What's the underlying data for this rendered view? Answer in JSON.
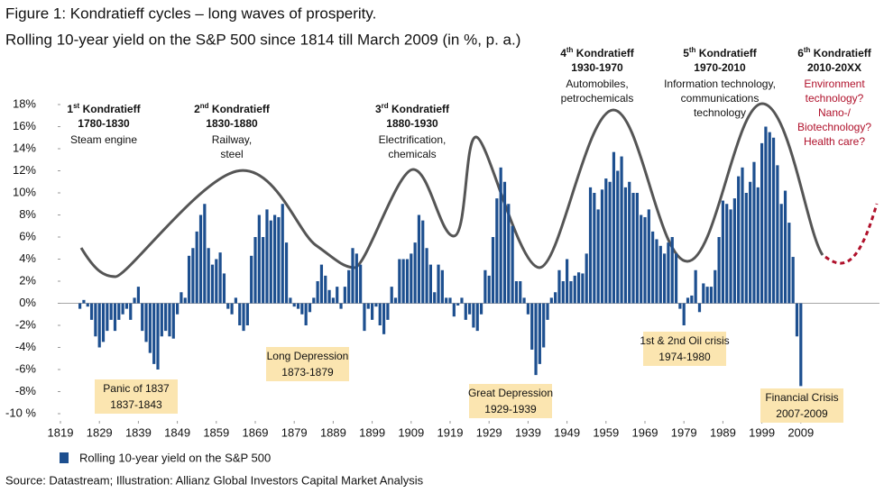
{
  "chart_data": {
    "type": "bar",
    "title": "Figure 1: Kondratieff cycles – long waves of prosperity.",
    "subtitle": "Rolling 10-year yield on the S&P 500 since 1814 till March 2009 (in %, p. a.)",
    "source": "Source: Datastream; Illustration: Allianz Global Investors Capital Market Analysis",
    "xlim": [
      1819,
      2019
    ],
    "xticks": [
      1819,
      1829,
      1839,
      1849,
      1859,
      1869,
      1879,
      1889,
      1899,
      1909,
      1919,
      1929,
      1939,
      1949,
      1959,
      1969,
      1979,
      1989,
      1999,
      2009
    ],
    "ylim": [
      -10,
      18
    ],
    "yticks": [
      {
        "value": -10,
        "label": "-10 %"
      },
      {
        "value": -8,
        "label": "-8%"
      },
      {
        "value": -6,
        "label": "-6%"
      },
      {
        "value": -4,
        "label": "-4%"
      },
      {
        "value": -2,
        "label": "-2%"
      },
      {
        "value": 0,
        "label": "0%"
      },
      {
        "value": 2,
        "label": "2%"
      },
      {
        "value": 4,
        "label": "4%"
      },
      {
        "value": 6,
        "label": "6%"
      },
      {
        "value": 8,
        "label": "8%"
      },
      {
        "value": 10,
        "label": "10%"
      },
      {
        "value": 12,
        "label": "12%"
      },
      {
        "value": 14,
        "label": "14%"
      },
      {
        "value": 16,
        "label": "16%"
      },
      {
        "value": 18,
        "label": "18%"
      }
    ],
    "x": [
      1824,
      1825,
      1826,
      1827,
      1828,
      1829,
      1830,
      1831,
      1832,
      1833,
      1834,
      1835,
      1836,
      1837,
      1838,
      1839,
      1840,
      1841,
      1842,
      1843,
      1844,
      1845,
      1846,
      1847,
      1848,
      1849,
      1850,
      1851,
      1852,
      1853,
      1854,
      1855,
      1856,
      1857,
      1858,
      1859,
      1860,
      1861,
      1862,
      1863,
      1864,
      1865,
      1866,
      1867,
      1868,
      1869,
      1870,
      1871,
      1872,
      1873,
      1874,
      1875,
      1876,
      1877,
      1878,
      1879,
      1880,
      1881,
      1882,
      1883,
      1884,
      1885,
      1886,
      1887,
      1888,
      1889,
      1890,
      1891,
      1892,
      1893,
      1894,
      1895,
      1896,
      1897,
      1898,
      1899,
      1900,
      1901,
      1902,
      1903,
      1904,
      1905,
      1906,
      1907,
      1908,
      1909,
      1910,
      1911,
      1912,
      1913,
      1914,
      1915,
      1916,
      1917,
      1918,
      1919,
      1920,
      1921,
      1922,
      1923,
      1924,
      1925,
      1926,
      1927,
      1928,
      1929,
      1930,
      1931,
      1932,
      1933,
      1934,
      1935,
      1936,
      1937,
      1938,
      1939,
      1940,
      1941,
      1942,
      1943,
      1944,
      1945,
      1946,
      1947,
      1948,
      1949,
      1950,
      1951,
      1952,
      1953,
      1954,
      1955,
      1956,
      1957,
      1958,
      1959,
      1960,
      1961,
      1962,
      1963,
      1964,
      1965,
      1966,
      1967,
      1968,
      1969,
      1970,
      1971,
      1972,
      1973,
      1974,
      1975,
      1976,
      1977,
      1978,
      1979,
      1980,
      1981,
      1982,
      1983,
      1984,
      1985,
      1986,
      1987,
      1988,
      1989,
      1990,
      1991,
      1992,
      1993,
      1994,
      1995,
      1996,
      1997,
      1998,
      1999,
      2000,
      2001,
      2002,
      2003,
      2004,
      2005,
      2006,
      2007,
      2008,
      2009
    ],
    "series": [
      {
        "name": "Rolling 10-year yield on the S&P 500",
        "color": "#1d4f8f",
        "values": [
          -0.5,
          0.3,
          -0.3,
          -1.5,
          -3,
          -4,
          -3.5,
          -2.5,
          -1.5,
          -2.5,
          -1.5,
          -1,
          -0.5,
          -1.5,
          0.5,
          1.5,
          -2.5,
          -3.5,
          -4.5,
          -5.5,
          -6,
          -3,
          -2.5,
          -3,
          -3.2,
          -1,
          1,
          0.5,
          4.3,
          5,
          6.5,
          8,
          9,
          5,
          3.5,
          4,
          4.6,
          2.7,
          -0.5,
          -1,
          0.5,
          -2,
          -2.5,
          -2,
          4.3,
          6,
          8,
          6,
          8.5,
          7.5,
          8,
          7.8,
          9,
          5.5,
          0.5,
          -0.3,
          -0.5,
          -1,
          -2,
          -0.8,
          0.5,
          2,
          3.5,
          2.5,
          1.2,
          0.5,
          1.5,
          -0.5,
          1.5,
          3,
          5,
          4.5,
          3.5,
          -2.5,
          -0.5,
          -1.5,
          -0.3,
          -2,
          -2.8,
          -1.5,
          1.5,
          0.5,
          4,
          4,
          4,
          4.5,
          5.5,
          8,
          7.5,
          5,
          3.5,
          1,
          3.5,
          3,
          0.5,
          0.5,
          -1.2,
          -0.2,
          0.5,
          -1.5,
          -1,
          -2.2,
          -2.5,
          -1,
          3,
          2.5,
          6,
          9.5,
          12.3,
          11,
          9,
          7,
          2,
          2,
          0.5,
          -1,
          -4.2,
          -6.5,
          -5.5,
          -4,
          -1.5,
          0.5,
          1,
          3,
          2,
          4,
          2,
          2.5,
          2.8,
          2.7,
          4.5,
          10.5,
          10,
          8.5,
          10.3,
          11.3,
          11,
          13.7,
          12,
          13.3,
          10.5,
          11,
          10,
          10,
          8,
          7.8,
          8.5,
          6.5,
          5.8,
          5.2,
          4.5,
          5.5,
          6,
          4.5,
          -0.5,
          -2,
          0.5,
          0.7,
          3,
          -0.8,
          1.8,
          1.5,
          1.5,
          3,
          6,
          9.3,
          9,
          8.5,
          9.5,
          11.5,
          12.3,
          10,
          11,
          12.8,
          10.5,
          14.5,
          16,
          15.5,
          15,
          12.5,
          9,
          10.2,
          7.3,
          4.2,
          -3,
          -7.5
        ]
      }
    ],
    "cycles": [
      {
        "ordinal": "1",
        "suffix": "st",
        "name": " Kondratieff",
        "years": "1780-1830",
        "desc": [
          "Steam engine"
        ]
      },
      {
        "ordinal": "2",
        "suffix": "nd",
        "name": " Kondratieff",
        "years": "1830-1880",
        "desc": [
          "Railway,",
          "steel"
        ]
      },
      {
        "ordinal": "3",
        "suffix": "rd",
        "name": " Kondratieff",
        "years": "1880-1930",
        "desc": [
          "Electrification,",
          "chemicals"
        ]
      },
      {
        "ordinal": "4",
        "suffix": "th",
        "name": " Kondratieff",
        "years": "1930-1970",
        "desc": [
          "Automobiles,",
          "petrochemicals"
        ]
      },
      {
        "ordinal": "5",
        "suffix": "th",
        "name": " Kondratieff",
        "years": "1970-2010",
        "desc": [
          "Information technology,",
          "communications",
          "technology"
        ]
      },
      {
        "ordinal": "6",
        "suffix": "th",
        "name": " Kondratieff",
        "years": "2010-20XX",
        "desc": [
          "Environment",
          "technology?",
          "Nano-/",
          "Biotechnology?",
          "Health care?"
        ]
      }
    ],
    "crises": [
      {
        "name": "Panic of 1837",
        "years": "1837-1843"
      },
      {
        "name": "Long Depression",
        "years": "1873-1879"
      },
      {
        "name": "Great Depression",
        "years": "1929-1939"
      },
      {
        "name": "1st & 2nd Oil crisis",
        "years": "1974-1980"
      },
      {
        "name": "Financial Crisis",
        "years": "2007-2009"
      }
    ]
  }
}
